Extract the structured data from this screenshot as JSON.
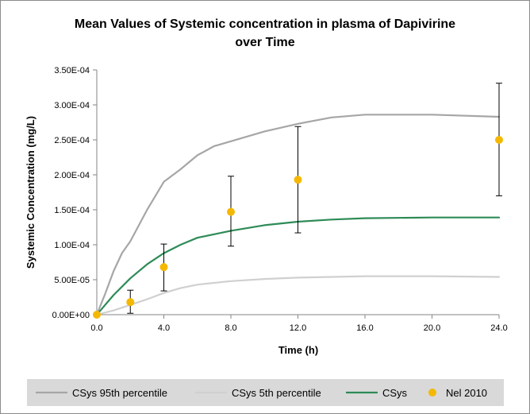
{
  "chart_data": {
    "type": "line",
    "title": "Mean Values of Systemic concentration in plasma of Dapivirine over Time",
    "title_lines": [
      "Mean Values of Systemic concentration in plasma of Dapivirine",
      "over Time"
    ],
    "xlabel": "Time (h)",
    "ylabel": "Systemic Concentration (mg/L)",
    "xlim": [
      0,
      24
    ],
    "ylim": [
      0,
      0.00035
    ],
    "x_ticks": [
      0,
      4,
      8,
      12,
      16,
      20,
      24
    ],
    "x_tick_labels": [
      "0.0",
      "4.0",
      "8.0",
      "12.0",
      "16.0",
      "20.0",
      "24.0"
    ],
    "y_ticks": [
      0,
      5e-05,
      0.0001,
      0.00015,
      0.0002,
      0.00025,
      0.0003,
      0.00035
    ],
    "y_tick_labels": [
      "0.00E+00",
      "5.00E-05",
      "1.00E-04",
      "1.50E-04",
      "2.00E-04",
      "2.50E-04",
      "3.00E-04",
      "3.50E-04"
    ],
    "grid": false,
    "legend_position": "bottom",
    "series": [
      {
        "name": "CSys 95th percentile",
        "kind": "line",
        "color": "#a6a6a6",
        "x": [
          0,
          0.5,
          1,
          1.5,
          2,
          3,
          4,
          5,
          6,
          7,
          8,
          10,
          12,
          14,
          16,
          20,
          24
        ],
        "y": [
          0,
          3e-05,
          6.2e-05,
          8.8e-05,
          0.000105,
          0.00015,
          0.00019,
          0.000208,
          0.000228,
          0.000241,
          0.000248,
          0.000262,
          0.000273,
          0.000282,
          0.000286,
          0.000286,
          0.000283
        ]
      },
      {
        "name": "CSys 5th percentile",
        "kind": "line",
        "color": "#d0d0d0",
        "x": [
          0,
          1,
          2,
          3,
          4,
          5,
          6,
          8,
          10,
          12,
          14,
          16,
          20,
          24
        ],
        "y": [
          0,
          6e-06,
          1.4e-05,
          2.2e-05,
          3.1e-05,
          3.8e-05,
          4.3e-05,
          4.8e-05,
          5.1e-05,
          5.3e-05,
          5.4e-05,
          5.5e-05,
          5.5e-05,
          5.4e-05
        ]
      },
      {
        "name": "CSys",
        "kind": "line",
        "color": "#2e8b57",
        "x": [
          0,
          1,
          2,
          3,
          4,
          5,
          6,
          8,
          10,
          12,
          14,
          16,
          20,
          24
        ],
        "y": [
          0,
          2.8e-05,
          5.2e-05,
          7.2e-05,
          8.8e-05,
          0.0001,
          0.00011,
          0.00012,
          0.000128,
          0.000133,
          0.000136,
          0.000138,
          0.000139,
          0.000139
        ]
      },
      {
        "name": "Nel 2010",
        "kind": "scatter",
        "color": "#f5b800",
        "x": [
          0,
          2,
          4,
          8,
          12,
          24
        ],
        "y": [
          0,
          1.8e-05,
          6.8e-05,
          0.000147,
          0.000193,
          0.00025
        ],
        "error_low": [
          0,
          2e-06,
          3.4e-05,
          9.8e-05,
          0.000117,
          0.00017
        ],
        "error_high": [
          0,
          3.5e-05,
          0.000101,
          0.000198,
          0.000269,
          0.000331
        ]
      }
    ]
  }
}
